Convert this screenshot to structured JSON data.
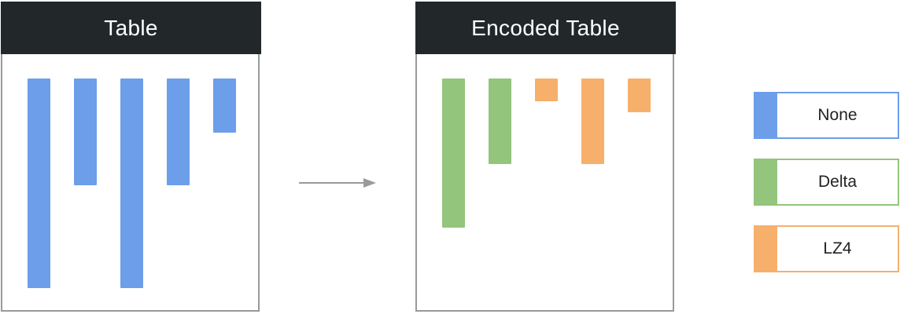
{
  "colors": {
    "none": "#6c9eea",
    "delta": "#93c57c",
    "lz4": "#f6b06b",
    "header_bg": "#222829",
    "panel_border": "#9a9a9a",
    "arrow": "#9a9a9a"
  },
  "table_panel": {
    "title": "Table",
    "columns": [
      {
        "encoding": "none",
        "length": 1.0
      },
      {
        "encoding": "none",
        "length": 0.51
      },
      {
        "encoding": "none",
        "length": 1.0
      },
      {
        "encoding": "none",
        "length": 0.51
      },
      {
        "encoding": "none",
        "length": 0.26
      }
    ]
  },
  "encoded_panel": {
    "title": "Encoded Table",
    "columns": [
      {
        "encoding": "delta",
        "length": 0.71
      },
      {
        "encoding": "delta",
        "length": 0.41
      },
      {
        "encoding": "lz4",
        "length": 0.11
      },
      {
        "encoding": "lz4",
        "length": 0.41
      },
      {
        "encoding": "lz4",
        "length": 0.16
      }
    ]
  },
  "legend": [
    {
      "key": "none",
      "label": "None"
    },
    {
      "key": "delta",
      "label": "Delta"
    },
    {
      "key": "lz4",
      "label": "LZ4"
    }
  ],
  "arrow": {
    "icon": "right-arrow-icon"
  }
}
